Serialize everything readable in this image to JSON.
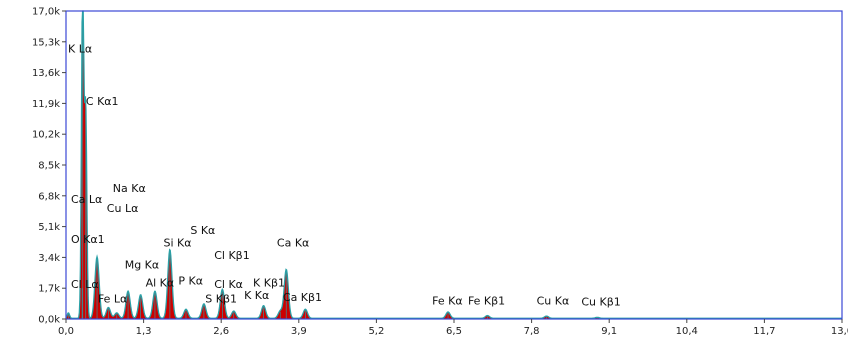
{
  "chart_data": {
    "type": "area",
    "title": "",
    "xlabel": "",
    "ylabel": "",
    "xlim": [
      0,
      13.0
    ],
    "ylim": [
      0,
      17.0
    ],
    "x_ticks": [
      "0,0",
      "1,3",
      "2,6",
      "3,9",
      "5,2",
      "6,5",
      "7,8",
      "9,1",
      "10,4",
      "11,7",
      "13,0"
    ],
    "x_tick_values": [
      0,
      1.3,
      2.6,
      3.9,
      5.2,
      6.5,
      7.8,
      9.1,
      10.4,
      11.7,
      13.0
    ],
    "y_ticks": [
      "0,0k",
      "1,7k",
      "3,4k",
      "5,1k",
      "6,8k",
      "8,5k",
      "10,2k",
      "11,9k",
      "13,6k",
      "15,3k",
      "17,0k"
    ],
    "y_tick_values": [
      0,
      1.7,
      3.4,
      5.1,
      6.8,
      8.5,
      10.2,
      11.9,
      13.6,
      15.3,
      17.0
    ],
    "colors": {
      "fill": "#cc0000",
      "line": "#2aa0a6",
      "frame": "#3b48d6",
      "grid": "#bdbdbd"
    },
    "peaks": [
      {
        "x": 0.04,
        "y": 0.3
      },
      {
        "x": 0.27,
        "y": 1.7
      },
      {
        "x": 0.28,
        "y": 17.0
      },
      {
        "x": 0.33,
        "y": 11.5
      },
      {
        "x": 0.52,
        "y": 3.4
      },
      {
        "x": 0.71,
        "y": 0.6
      },
      {
        "x": 0.85,
        "y": 0.3
      },
      {
        "x": 1.04,
        "y": 1.5
      },
      {
        "x": 1.25,
        "y": 1.3
      },
      {
        "x": 1.49,
        "y": 1.5
      },
      {
        "x": 1.74,
        "y": 3.8
      },
      {
        "x": 2.01,
        "y": 0.5
      },
      {
        "x": 2.31,
        "y": 0.8
      },
      {
        "x": 2.62,
        "y": 1.6
      },
      {
        "x": 2.81,
        "y": 0.4
      },
      {
        "x": 3.31,
        "y": 0.7
      },
      {
        "x": 3.59,
        "y": 0.4
      },
      {
        "x": 3.69,
        "y": 2.7
      },
      {
        "x": 4.01,
        "y": 0.5
      },
      {
        "x": 6.4,
        "y": 0.35
      },
      {
        "x": 7.06,
        "y": 0.15
      },
      {
        "x": 8.05,
        "y": 0.12
      },
      {
        "x": 8.9,
        "y": 0.05
      }
    ],
    "annotations": [
      {
        "text": "K  Lα",
        "x": 0.0,
        "y": 14.7
      },
      {
        "text": "C  Kα1",
        "x": 0.3,
        "y": 11.8
      },
      {
        "text": "Na Kα",
        "x": 0.75,
        "y": 7.0
      },
      {
        "text": "Ca Lα",
        "x": 0.05,
        "y": 6.4
      },
      {
        "text": "Cu Lα",
        "x": 0.65,
        "y": 5.9
      },
      {
        "text": "S  Kα",
        "x": 2.05,
        "y": 4.7
      },
      {
        "text": "O  Kα1",
        "x": 0.05,
        "y": 4.2
      },
      {
        "text": "Si Kα",
        "x": 1.6,
        "y": 4.0
      },
      {
        "text": "Ca Kα",
        "x": 3.5,
        "y": 4.0
      },
      {
        "text": "Cl Kβ1",
        "x": 2.45,
        "y": 3.3
      },
      {
        "text": "Mg Kα",
        "x": 0.95,
        "y": 2.8
      },
      {
        "text": "P  Kα",
        "x": 1.85,
        "y": 1.9
      },
      {
        "text": "Al Kα",
        "x": 1.3,
        "y": 1.8
      },
      {
        "text": "K  Kβ1",
        "x": 3.1,
        "y": 1.8
      },
      {
        "text": "Cl Lα",
        "x": 0.05,
        "y": 1.7
      },
      {
        "text": "Cl Kα",
        "x": 2.45,
        "y": 1.7
      },
      {
        "text": "Fe Lα",
        "x": 0.5,
        "y": 0.9
      },
      {
        "text": "S  Kβ1",
        "x": 2.3,
        "y": 0.9
      },
      {
        "text": "K  Kα",
        "x": 2.95,
        "y": 1.1
      },
      {
        "text": "Ca Kβ1",
        "x": 3.6,
        "y": 1.0
      },
      {
        "text": "Fe Kα",
        "x": 6.1,
        "y": 0.8
      },
      {
        "text": "Fe Kβ1",
        "x": 6.7,
        "y": 0.8
      },
      {
        "text": "Cu Kα",
        "x": 7.85,
        "y": 0.8
      },
      {
        "text": "Cu Kβ1",
        "x": 8.6,
        "y": 0.75
      }
    ]
  }
}
